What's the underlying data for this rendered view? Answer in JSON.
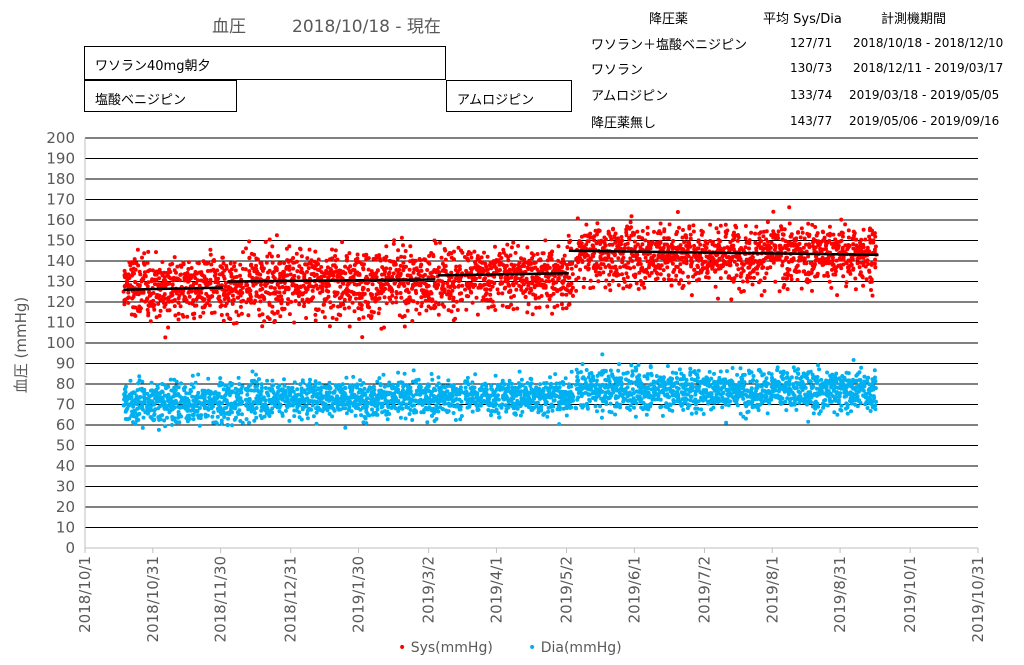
{
  "header": {
    "title": "血圧",
    "range": "2018/10/18 - 現在"
  },
  "boxes": {
    "wasoran40": "ワソラン40mg朝夕",
    "enzan_benijipin": "塩酸ベニジピン",
    "amlodipine": "アムロジピン"
  },
  "med_table": {
    "headers": [
      "降圧薬",
      "平均 Sys/Dia",
      "計測機期間"
    ],
    "rows": [
      {
        "drug": "ワソラン＋塩酸ベニジピン",
        "avg": "127/71",
        "period": "2018/10/18 - 2018/12/10"
      },
      {
        "drug": "ワソラン",
        "avg": "130/73",
        "period": "2018/12/11 - 2019/03/17"
      },
      {
        "drug": "アムロジピン",
        "avg": "133/74",
        "period": "2019/03/18 - 2019/05/05"
      },
      {
        "drug": "降圧薬無し",
        "avg": "143/77",
        "period": "2019/05/06 - 2019/09/16"
      }
    ]
  },
  "chart_data": {
    "type": "scatter",
    "ylabel": "血圧 (mmHg)",
    "ylim": [
      0,
      200
    ],
    "yticks": [
      0,
      10,
      20,
      30,
      40,
      50,
      60,
      70,
      80,
      90,
      100,
      110,
      120,
      130,
      140,
      150,
      160,
      170,
      180,
      190,
      200
    ],
    "xlim": [
      "2018-10-01",
      "2019-10-31"
    ],
    "xticks": [
      "2018/10/1",
      "2018/10/31",
      "2018/11/30",
      "2018/12/31",
      "2019/1/30",
      "2019/3/2",
      "2019/4/1",
      "2019/5/2",
      "2019/6/1",
      "2019/7/2",
      "2019/8/1",
      "2019/8/31",
      "2019/10/1",
      "2019/10/31"
    ],
    "grid": true,
    "series": [
      {
        "name": "Sys(mmHg)",
        "color": "#ff0000",
        "segments": [
          {
            "from": "2018-10-18",
            "to": "2018-12-10",
            "center": 127,
            "spread": 14
          },
          {
            "from": "2018-12-11",
            "to": "2019-03-17",
            "center": 130,
            "spread": 15
          },
          {
            "from": "2019-03-18",
            "to": "2019-05-05",
            "center": 133,
            "spread": 13
          },
          {
            "from": "2019-05-06",
            "to": "2019-09-16",
            "center": 143,
            "spread": 13
          }
        ]
      },
      {
        "name": "Dia(mmHg)",
        "color": "#00b0f0",
        "segments": [
          {
            "from": "2018-10-18",
            "to": "2018-12-10",
            "center": 71,
            "spread": 9
          },
          {
            "from": "2018-12-11",
            "to": "2019-03-17",
            "center": 73,
            "spread": 8
          },
          {
            "from": "2019-03-18",
            "to": "2019-05-05",
            "center": 74,
            "spread": 8
          },
          {
            "from": "2019-05-06",
            "to": "2019-09-16",
            "center": 77,
            "spread": 9
          }
        ]
      }
    ],
    "averages": [
      {
        "from": "2018-10-18",
        "to": "2018-12-01",
        "y_start": 126,
        "y_end": 127
      },
      {
        "from": "2018-12-03",
        "to": "2019-03-05",
        "y_start": 130,
        "y_end": 131
      },
      {
        "from": "2019-03-06",
        "to": "2019-05-03",
        "y_start": 133,
        "y_end": 134
      },
      {
        "from": "2019-05-03",
        "to": "2019-09-17",
        "y_start": 145,
        "y_end": 143
      }
    ],
    "legend": [
      "Sys(mmHg)",
      "Dia(mmHg)"
    ],
    "legend_position": "bottom"
  }
}
